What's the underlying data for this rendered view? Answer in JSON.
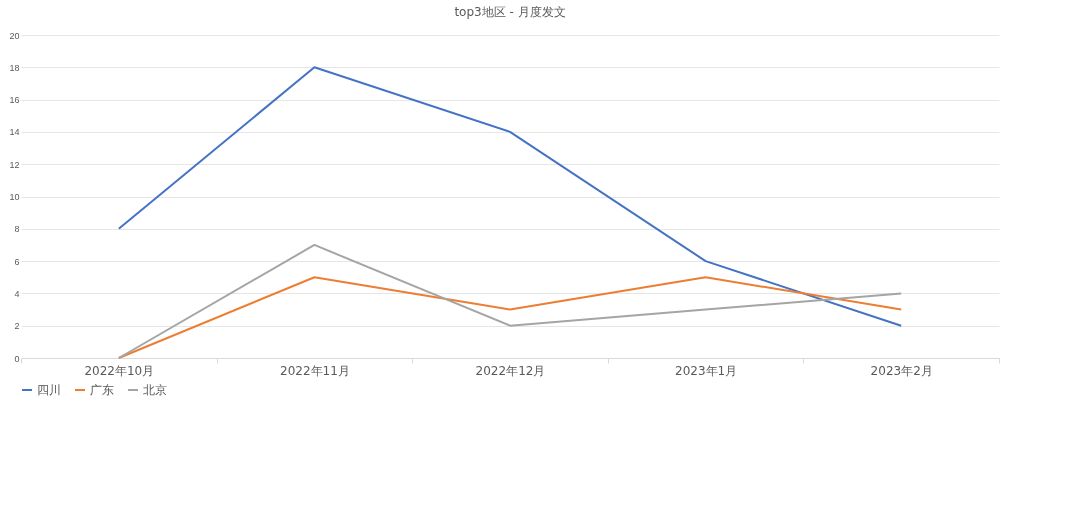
{
  "chart_data": {
    "type": "line",
    "title": "top3地区 - 月度发文",
    "categories": [
      "2022年10月",
      "2022年11月",
      "2022年12月",
      "2023年1月",
      "2023年2月"
    ],
    "series": [
      {
        "name": "四川",
        "color": "#4472c4",
        "values": [
          8,
          18,
          14,
          6,
          2
        ]
      },
      {
        "name": "广东",
        "color": "#ed7d31",
        "values": [
          0,
          5,
          3,
          5,
          3
        ]
      },
      {
        "name": "北京",
        "color": "#a5a5a5",
        "values": [
          0,
          7,
          2,
          3,
          4
        ]
      }
    ],
    "ylim": [
      0,
      20
    ],
    "yticks": [
      0,
      2,
      4,
      6,
      8,
      10,
      12,
      14,
      16,
      18,
      20
    ],
    "grid": "y",
    "legend": "bottom",
    "marker": "none",
    "line_style": "solid"
  }
}
